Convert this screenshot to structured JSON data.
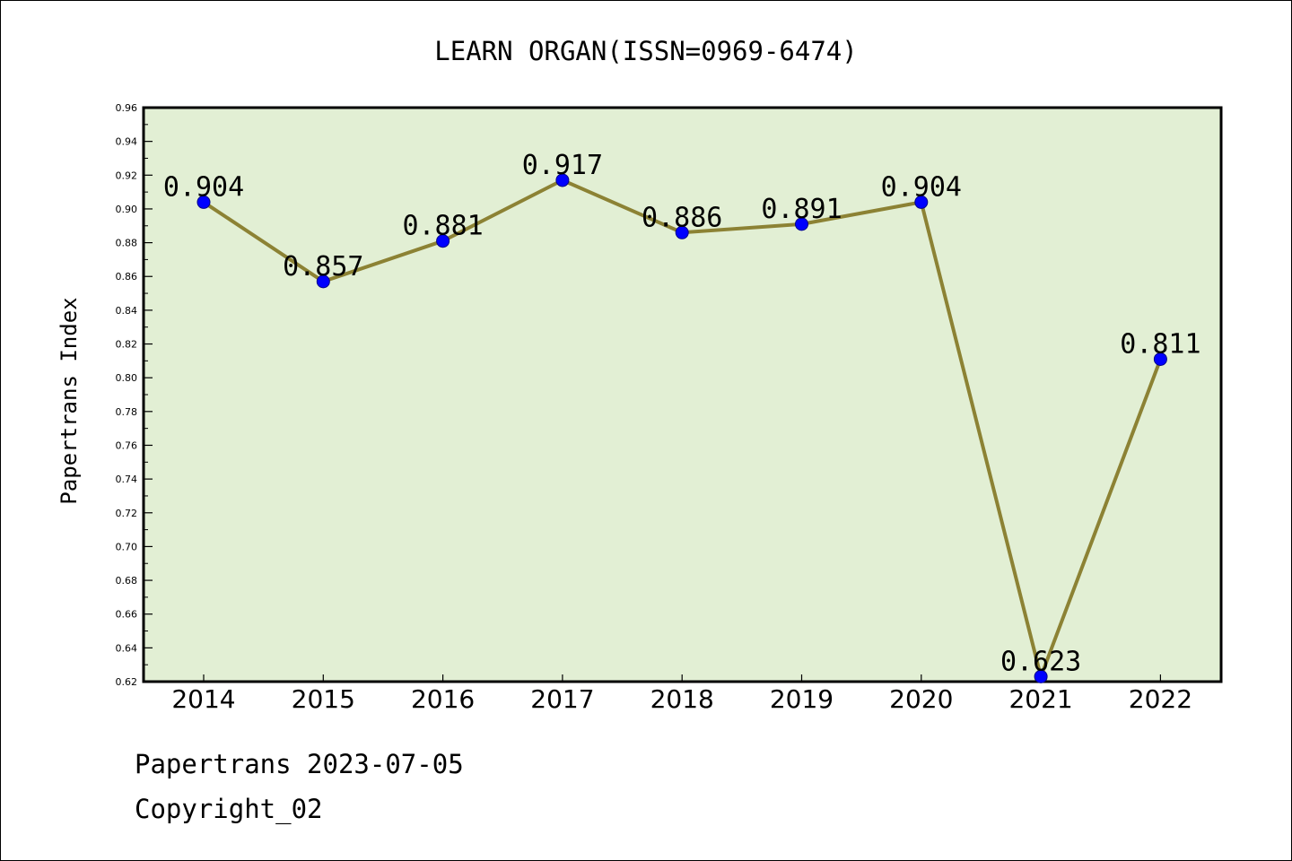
{
  "chart_data": {
    "type": "line",
    "title": "LEARN ORGAN(ISSN=0969-6474)",
    "xlabel": "",
    "ylabel": "Papertrans Index",
    "categories": [
      "2014",
      "2015",
      "2016",
      "2017",
      "2018",
      "2019",
      "2020",
      "2021",
      "2022"
    ],
    "series": [
      {
        "values": [
          0.904,
          0.857,
          0.881,
          0.917,
          0.886,
          0.891,
          0.904,
          0.623,
          0.811
        ],
        "data_labels": [
          "0.904",
          "0.857",
          "0.881",
          "0.917",
          "0.886",
          "0.891",
          "0.904",
          "0.623",
          "0.811"
        ]
      }
    ],
    "ylim": [
      0.62,
      0.96
    ],
    "yticks": [
      "0.62",
      "0.64",
      "0.66",
      "0.68",
      "0.70",
      "0.72",
      "0.74",
      "0.76",
      "0.78",
      "0.80",
      "0.82",
      "0.84",
      "0.86",
      "0.88",
      "0.90",
      "0.92",
      "0.94",
      "0.96"
    ],
    "grid": false,
    "legend": "none",
    "colors": {
      "plot_background": "#e2efd4",
      "line": "#8c8234",
      "marker": "#0000ff",
      "marker_edge": "#00008b",
      "axis": "#000000"
    }
  },
  "footer": {
    "line1": "Papertrans 2023-07-05",
    "line2": "Copyright_02"
  }
}
